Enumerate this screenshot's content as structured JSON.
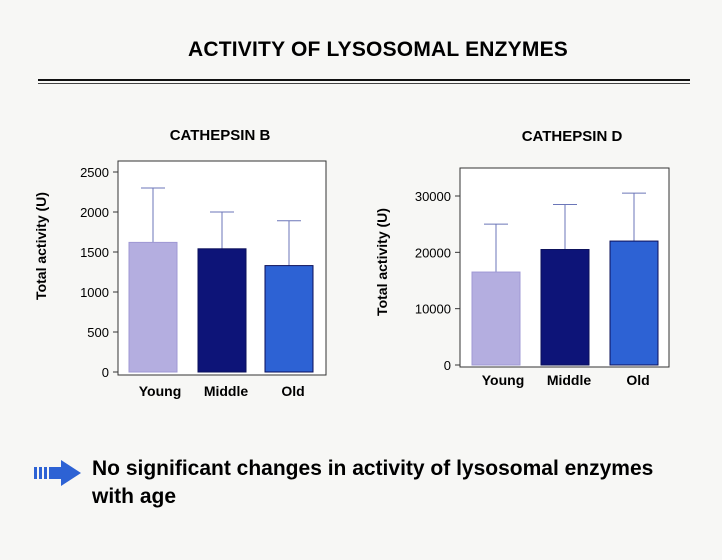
{
  "title": "ACTIVITY OF LYSOSOMAL ENZYMES",
  "conclusion": "No significant changes in activity of lysosomal enzymes with age",
  "colors": {
    "young": "#b4aee0",
    "middle": "#0d1478",
    "old": "#2d62d4",
    "error_bar": "#6b76b8"
  },
  "icons": {
    "bullet": "right-arrow-icon"
  },
  "chart_data": [
    {
      "type": "bar",
      "title": "CATHEPSIN B",
      "ylabel": "Total activity (U)",
      "xlabel": "",
      "categories": [
        "Young",
        "Middle",
        "Old"
      ],
      "values": [
        1620,
        1540,
        1330
      ],
      "error_upper": [
        2300,
        2000,
        1890
      ],
      "ylim": [
        0,
        2500
      ],
      "yticks": [
        "0",
        "500",
        "1000",
        "1500",
        "2000",
        "2500"
      ],
      "grid": false,
      "legend": "none"
    },
    {
      "type": "bar",
      "title": "CATHEPSIN D",
      "ylabel": "Total activity (U)",
      "xlabel": "",
      "categories": [
        "Young",
        "Middle",
        "Old"
      ],
      "values": [
        16500,
        20500,
        22000
      ],
      "error_upper": [
        25000,
        28500,
        30500
      ],
      "ylim": [
        0,
        35000
      ],
      "yticks": [
        "0",
        "10000",
        "20000",
        "30000"
      ],
      "grid": false,
      "legend": "none"
    }
  ]
}
